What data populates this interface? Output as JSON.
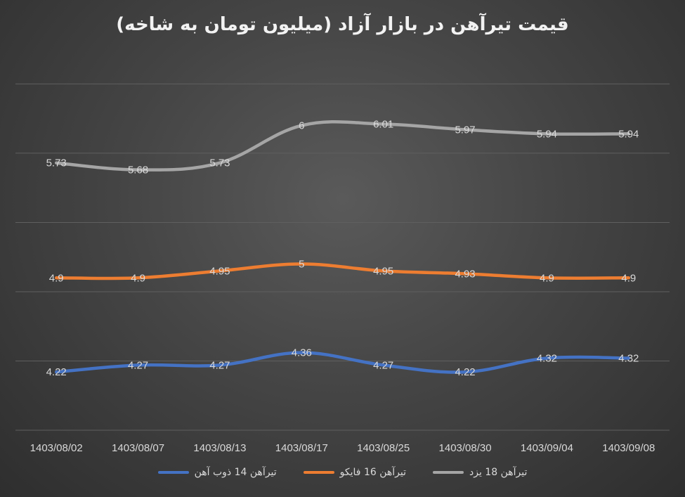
{
  "chart_data": {
    "type": "line",
    "title": "قیمت تیرآهن در بازار آزاد (میلیون تومان به شاخه)",
    "categories": [
      "1403/08/02",
      "1403/08/07",
      "1403/08/13",
      "1403/08/17",
      "1403/08/25",
      "1403/08/30",
      "1403/09/04",
      "1403/09/08"
    ],
    "ylim": [
      3.8,
      6.5
    ],
    "grid": true,
    "legend_position": "bottom",
    "series": [
      {
        "name": "تیرآهن 14 ذوب آهن",
        "color": "#4472c4",
        "values": [
          4.22,
          4.27,
          4.27,
          4.36,
          4.27,
          4.22,
          4.32,
          4.32
        ]
      },
      {
        "name": "تیرآهن 16 فایکو",
        "color": "#ed7d31",
        "values": [
          4.9,
          4.9,
          4.95,
          5,
          4.95,
          4.93,
          4.9,
          4.9
        ]
      },
      {
        "name": "تیرآهن 18 یزد",
        "color": "#a5a5a5",
        "values": [
          5.73,
          5.68,
          5.73,
          6,
          6.01,
          5.97,
          5.94,
          5.94
        ]
      }
    ]
  }
}
